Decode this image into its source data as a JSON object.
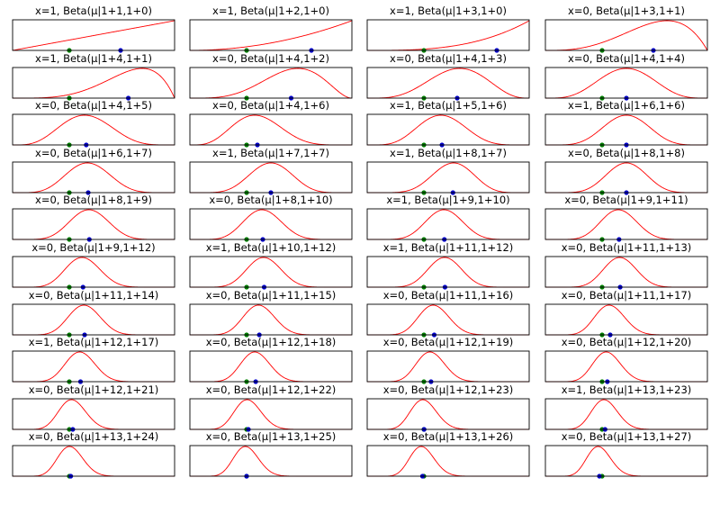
{
  "chart_data": {
    "type": "line",
    "layout": "10x4 small-multiples",
    "xlim": [
      0,
      1
    ],
    "grid": false,
    "colors": {
      "curve": "#ff0000",
      "true_mu_marker": "#008000",
      "estimate_marker": "#0000cc",
      "frame": "#000000"
    },
    "true_mu": 0.35,
    "panels": [
      {
        "title": "x=1, Beta(μ|1+1,1+0)",
        "x": 1,
        "alpha": 2,
        "beta": 1
      },
      {
        "title": "x=1, Beta(μ|1+2,1+0)",
        "x": 1,
        "alpha": 3,
        "beta": 1
      },
      {
        "title": "x=1, Beta(μ|1+3,1+0)",
        "x": 1,
        "alpha": 4,
        "beta": 1
      },
      {
        "title": "x=0, Beta(μ|1+3,1+1)",
        "x": 0,
        "alpha": 4,
        "beta": 2
      },
      {
        "title": "x=1, Beta(μ|1+4,1+1)",
        "x": 1,
        "alpha": 5,
        "beta": 2
      },
      {
        "title": "x=0, Beta(μ|1+4,1+2)",
        "x": 0,
        "alpha": 5,
        "beta": 3
      },
      {
        "title": "x=0, Beta(μ|1+4,1+3)",
        "x": 0,
        "alpha": 5,
        "beta": 4
      },
      {
        "title": "x=0, Beta(μ|1+4,1+4)",
        "x": 0,
        "alpha": 5,
        "beta": 5
      },
      {
        "title": "x=0, Beta(μ|1+4,1+5)",
        "x": 0,
        "alpha": 5,
        "beta": 6
      },
      {
        "title": "x=0, Beta(μ|1+4,1+6)",
        "x": 0,
        "alpha": 5,
        "beta": 7
      },
      {
        "title": "x=1, Beta(μ|1+5,1+6)",
        "x": 1,
        "alpha": 6,
        "beta": 7
      },
      {
        "title": "x=1, Beta(μ|1+6,1+6)",
        "x": 1,
        "alpha": 7,
        "beta": 7
      },
      {
        "title": "x=0, Beta(μ|1+6,1+7)",
        "x": 0,
        "alpha": 7,
        "beta": 8
      },
      {
        "title": "x=1, Beta(μ|1+7,1+7)",
        "x": 1,
        "alpha": 8,
        "beta": 8
      },
      {
        "title": "x=1, Beta(μ|1+8,1+7)",
        "x": 1,
        "alpha": 9,
        "beta": 8
      },
      {
        "title": "x=0, Beta(μ|1+8,1+8)",
        "x": 0,
        "alpha": 9,
        "beta": 9
      },
      {
        "title": "x=0, Beta(μ|1+8,1+9)",
        "x": 0,
        "alpha": 9,
        "beta": 10
      },
      {
        "title": "x=0, Beta(μ|1+8,1+10)",
        "x": 0,
        "alpha": 9,
        "beta": 11
      },
      {
        "title": "x=1, Beta(μ|1+9,1+10)",
        "x": 1,
        "alpha": 10,
        "beta": 11
      },
      {
        "title": "x=0, Beta(μ|1+9,1+11)",
        "x": 0,
        "alpha": 10,
        "beta": 12
      },
      {
        "title": "x=0, Beta(μ|1+9,1+12)",
        "x": 0,
        "alpha": 10,
        "beta": 13
      },
      {
        "title": "x=1, Beta(μ|1+10,1+12)",
        "x": 1,
        "alpha": 11,
        "beta": 13
      },
      {
        "title": "x=1, Beta(μ|1+11,1+12)",
        "x": 1,
        "alpha": 12,
        "beta": 13
      },
      {
        "title": "x=0, Beta(μ|1+11,1+13)",
        "x": 0,
        "alpha": 12,
        "beta": 14
      },
      {
        "title": "x=0, Beta(μ|1+11,1+14)",
        "x": 0,
        "alpha": 12,
        "beta": 15
      },
      {
        "title": "x=0, Beta(μ|1+11,1+15)",
        "x": 0,
        "alpha": 12,
        "beta": 16
      },
      {
        "title": "x=0, Beta(μ|1+11,1+16)",
        "x": 0,
        "alpha": 12,
        "beta": 17
      },
      {
        "title": "x=0, Beta(μ|1+11,1+17)",
        "x": 0,
        "alpha": 12,
        "beta": 18
      },
      {
        "title": "x=1, Beta(μ|1+12,1+17)",
        "x": 1,
        "alpha": 13,
        "beta": 18
      },
      {
        "title": "x=0, Beta(μ|1+12,1+18)",
        "x": 0,
        "alpha": 13,
        "beta": 19
      },
      {
        "title": "x=0, Beta(μ|1+12,1+19)",
        "x": 0,
        "alpha": 13,
        "beta": 20
      },
      {
        "title": "x=0, Beta(μ|1+12,1+20)",
        "x": 0,
        "alpha": 13,
        "beta": 21
      },
      {
        "title": "x=0, Beta(μ|1+12,1+21)",
        "x": 0,
        "alpha": 13,
        "beta": 22
      },
      {
        "title": "x=0, Beta(μ|1+12,1+22)",
        "x": 0,
        "alpha": 13,
        "beta": 23
      },
      {
        "title": "x=0, Beta(μ|1+12,1+23)",
        "x": 0,
        "alpha": 13,
        "beta": 24
      },
      {
        "title": "x=1, Beta(μ|1+13,1+23)",
        "x": 1,
        "alpha": 14,
        "beta": 24
      },
      {
        "title": "x=0, Beta(μ|1+13,1+24)",
        "x": 0,
        "alpha": 14,
        "beta": 25
      },
      {
        "title": "x=0, Beta(μ|1+13,1+25)",
        "x": 0,
        "alpha": 14,
        "beta": 26
      },
      {
        "title": "x=0, Beta(μ|1+13,1+26)",
        "x": 0,
        "alpha": 14,
        "beta": 27
      },
      {
        "title": "x=0, Beta(μ|1+13,1+27)",
        "x": 0,
        "alpha": 14,
        "beta": 28
      }
    ]
  }
}
